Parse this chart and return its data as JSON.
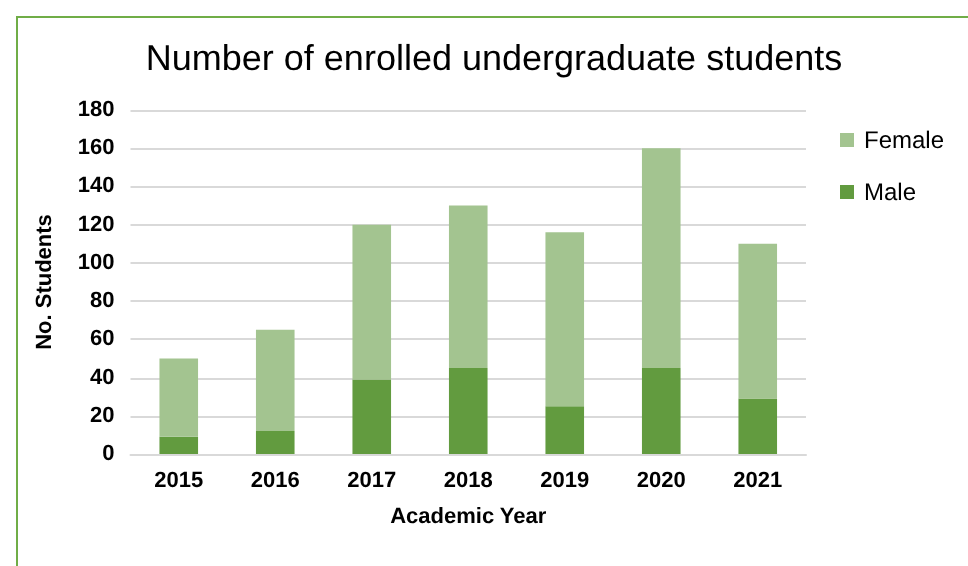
{
  "chart_data": {
    "type": "bar",
    "title": "Number of enrolled undergraduate students",
    "xlabel": "Academic Year",
    "ylabel": "No. Students",
    "categories": [
      "2015",
      "2016",
      "2017",
      "2018",
      "2019",
      "2020",
      "2021"
    ],
    "stacked": true,
    "series": [
      {
        "name": "Male",
        "color": "#629b3f",
        "values": [
          9,
          12,
          39,
          45,
          25,
          45,
          29
        ]
      },
      {
        "name": "Female",
        "color": "#a3c490",
        "values": [
          41,
          53,
          81,
          85,
          91,
          115,
          81
        ]
      }
    ],
    "ylim": [
      0,
      180
    ],
    "yticks": [
      0,
      20,
      40,
      60,
      80,
      100,
      120,
      140,
      160,
      180
    ],
    "grid": "y",
    "legend": "right"
  }
}
